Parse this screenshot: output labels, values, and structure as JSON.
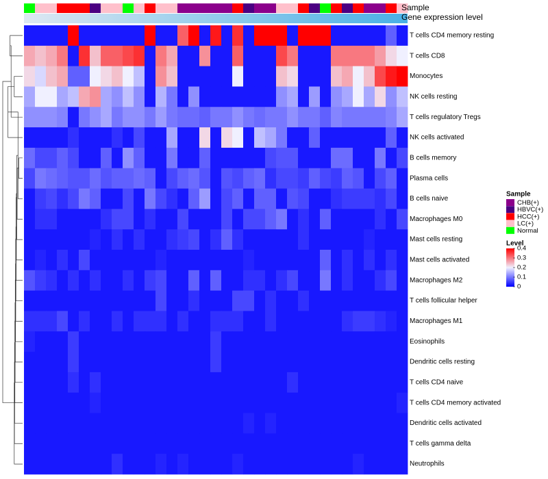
{
  "chart_data": {
    "type": "heatmap",
    "title": "",
    "top_annotation_labels": {
      "sample": "Sample",
      "expression": "Gene expression level"
    },
    "rows": [
      "T cells CD4 memory resting",
      "T cells CD8",
      "Monocytes",
      "NK cells resting",
      "T cells regulatory  Tregs",
      "NK cells activated",
      "B cells memory",
      "Plasma cells",
      "B cells naive",
      "Macrophages M0",
      "Mast cells resting",
      "Mast cells activated",
      "Macrophages M2",
      "T cells follicular helper",
      "Macrophages M1",
      "Eosinophils",
      "Dendritic cells resting",
      "T cells CD4 naive",
      "T cells CD4 memory activated",
      "Dendritic cells activated",
      "T cells gamma delta",
      "Neutrophils"
    ],
    "samples": [
      "Normal",
      "LC(+)",
      "LC(+)",
      "HCC(+)",
      "HCC(+)",
      "HCC(+)",
      "HBVC(+)",
      "LC(+)",
      "LC(+)",
      "Normal",
      "LC(+)",
      "HCC(+)",
      "LC(+)",
      "LC(+)",
      "CHB(+)",
      "CHB(+)",
      "CHB(+)",
      "CHB(+)",
      "CHB(+)",
      "HCC(+)",
      "HBVC(+)",
      "CHB(+)",
      "CHB(+)",
      "LC(+)",
      "LC(+)",
      "HCC(+)",
      "HBVC(+)",
      "Normal",
      "HCC(+)",
      "HBVC(+)",
      "HCC(+)",
      "CHB(+)",
      "CHB(+)",
      "HCC(+)",
      "LC(+)"
    ],
    "expression_gradient": {
      "start": "#dde8f2",
      "end": "#49b0e6"
    },
    "legend": {
      "sample_title": "Sample",
      "sample_categories": [
        {
          "label": "CHB(+)",
          "color": "#8b008b"
        },
        {
          "label": "HBVC(+)",
          "color": "#4b0082"
        },
        {
          "label": "HCC(+)",
          "color": "#ff0000"
        },
        {
          "label": "LC(+)",
          "color": "#ffc0cb"
        },
        {
          "label": "Normal",
          "color": "#00ff00"
        }
      ],
      "level_title": "Level",
      "level_ticks": [
        {
          "value": 0.4,
          "label": "0.4"
        },
        {
          "value": 0.3,
          "label": "0.3"
        },
        {
          "value": 0.2,
          "label": "0.2"
        },
        {
          "value": 0.1,
          "label": "0.1"
        },
        {
          "value": 0,
          "label": "0"
        }
      ],
      "level_range": [
        0,
        0.4
      ]
    },
    "colormap": {
      "stops": [
        {
          "value": 0,
          "color": "#0000ff"
        },
        {
          "value": 0.2,
          "color": "#f0f0ff"
        },
        {
          "value": 0.4,
          "color": "#ff0000"
        }
      ]
    },
    "values": [
      [
        0.02,
        0.02,
        0.02,
        0.02,
        0.4,
        0.02,
        0.02,
        0.02,
        0.02,
        0.02,
        0.02,
        0.4,
        0.02,
        0.02,
        0.32,
        0.4,
        0.02,
        0.38,
        0.02,
        0.36,
        0.02,
        0.4,
        0.4,
        0.4,
        0.02,
        0.4,
        0.4,
        0.4,
        0.02,
        0.02,
        0.02,
        0.02,
        0.02,
        0.08,
        0.02
      ],
      [
        0.26,
        0.24,
        0.26,
        0.3,
        0.02,
        0.36,
        0.24,
        0.32,
        0.32,
        0.34,
        0.36,
        0.02,
        0.3,
        0.26,
        0.02,
        0.02,
        0.28,
        0.02,
        0.02,
        0.32,
        0.02,
        0.02,
        0.02,
        0.34,
        0.3,
        0.02,
        0.02,
        0.02,
        0.3,
        0.3,
        0.3,
        0.3,
        0.27,
        0.22,
        0.2
      ],
      [
        0.22,
        0.18,
        0.24,
        0.26,
        0.08,
        0.08,
        0.2,
        0.22,
        0.24,
        0.2,
        0.16,
        0.02,
        0.28,
        0.24,
        0.02,
        0.02,
        0.02,
        0.02,
        0.02,
        0.2,
        0.02,
        0.02,
        0.02,
        0.24,
        0.22,
        0.02,
        0.02,
        0.02,
        0.24,
        0.26,
        0.2,
        0.24,
        0.34,
        0.38,
        0.4
      ],
      [
        0.14,
        0.2,
        0.2,
        0.14,
        0.16,
        0.26,
        0.28,
        0.14,
        0.12,
        0.16,
        0.12,
        0.02,
        0.15,
        0.1,
        0.02,
        0.12,
        0.02,
        0.02,
        0.02,
        0.02,
        0.02,
        0.02,
        0.02,
        0.12,
        0.14,
        0.02,
        0.13,
        0.02,
        0.12,
        0.14,
        0.2,
        0.14,
        0.22,
        0.12,
        0.16
      ],
      [
        0.12,
        0.12,
        0.12,
        0.11,
        0.02,
        0.1,
        0.12,
        0.14,
        0.1,
        0.12,
        0.12,
        0.1,
        0.13,
        0.1,
        0.09,
        0.09,
        0.08,
        0.1,
        0.1,
        0.12,
        0.1,
        0.09,
        0.1,
        0.1,
        0.12,
        0.1,
        0.1,
        0.08,
        0.11,
        0.1,
        0.1,
        0.1,
        0.1,
        0.11,
        0.14
      ],
      [
        0.02,
        0.02,
        0.02,
        0.02,
        0.04,
        0.02,
        0.02,
        0.02,
        0.04,
        0.02,
        0.06,
        0.02,
        0.02,
        0.14,
        0.02,
        0.02,
        0.22,
        0.02,
        0.22,
        0.2,
        0.02,
        0.16,
        0.14,
        0.1,
        0.02,
        0.02,
        0.08,
        0.02,
        0.02,
        0.02,
        0.02,
        0.02,
        0.02,
        0.08,
        0.02
      ],
      [
        0.09,
        0.06,
        0.06,
        0.08,
        0.06,
        0.02,
        0.02,
        0.08,
        0.02,
        0.12,
        0.08,
        0.02,
        0.02,
        0.1,
        0.02,
        0.02,
        0.08,
        0.02,
        0.02,
        0.02,
        0.02,
        0.02,
        0.06,
        0.07,
        0.07,
        0.02,
        0.02,
        0.02,
        0.09,
        0.09,
        0.02,
        0.02,
        0.1,
        0.02,
        0.06
      ],
      [
        0.06,
        0.1,
        0.09,
        0.08,
        0.07,
        0.07,
        0.09,
        0.07,
        0.08,
        0.08,
        0.09,
        0.08,
        0.02,
        0.06,
        0.08,
        0.09,
        0.07,
        0.02,
        0.07,
        0.06,
        0.08,
        0.09,
        0.04,
        0.06,
        0.06,
        0.05,
        0.08,
        0.06,
        0.05,
        0.08,
        0.07,
        0.02,
        0.06,
        0.08,
        0.02
      ],
      [
        0.02,
        0.05,
        0.06,
        0.04,
        0.06,
        0.1,
        0.08,
        0.02,
        0.02,
        0.06,
        0.02,
        0.1,
        0.06,
        0.04,
        0.02,
        0.08,
        0.13,
        0.02,
        0.06,
        0.08,
        0.02,
        0.08,
        0.08,
        0.02,
        0.07,
        0.06,
        0.02,
        0.02,
        0.04,
        0.05,
        0.05,
        0.05,
        0.04,
        0.06,
        0.02
      ],
      [
        0.02,
        0.04,
        0.04,
        0.02,
        0.02,
        0.02,
        0.02,
        0.04,
        0.06,
        0.06,
        0.02,
        0.04,
        0.02,
        0.02,
        0.06,
        0.02,
        0.02,
        0.02,
        0.06,
        0.02,
        0.06,
        0.06,
        0.08,
        0.1,
        0.02,
        0.04,
        0.02,
        0.08,
        0.02,
        0.02,
        0.02,
        0.02,
        0.04,
        0.02,
        0.06
      ],
      [
        0.02,
        0.02,
        0.02,
        0.02,
        0.02,
        0.02,
        0.03,
        0.02,
        0.04,
        0.02,
        0.04,
        0.02,
        0.02,
        0.04,
        0.05,
        0.06,
        0.02,
        0.04,
        0.08,
        0.04,
        0.02,
        0.02,
        0.02,
        0.02,
        0.02,
        0.04,
        0.02,
        0.02,
        0.02,
        0.02,
        0.02,
        0.03,
        0.02,
        0.02,
        0.02
      ],
      [
        0.02,
        0.03,
        0.02,
        0.04,
        0.02,
        0.06,
        0.02,
        0.02,
        0.02,
        0.02,
        0.02,
        0.02,
        0.03,
        0.02,
        0.02,
        0.02,
        0.02,
        0.02,
        0.02,
        0.02,
        0.03,
        0.02,
        0.02,
        0.02,
        0.02,
        0.02,
        0.02,
        0.08,
        0.02,
        0.04,
        0.02,
        0.04,
        0.02,
        0.04,
        0.02
      ],
      [
        0.07,
        0.05,
        0.04,
        0.02,
        0.04,
        0.02,
        0.04,
        0.02,
        0.02,
        0.04,
        0.02,
        0.05,
        0.06,
        0.02,
        0.02,
        0.08,
        0.02,
        0.08,
        0.02,
        0.02,
        0.04,
        0.04,
        0.02,
        0.04,
        0.06,
        0.02,
        0.02,
        0.1,
        0.02,
        0.04,
        0.02,
        0.02,
        0.04,
        0.06,
        0.02
      ],
      [
        0.02,
        0.02,
        0.02,
        0.02,
        0.02,
        0.02,
        0.02,
        0.02,
        0.02,
        0.02,
        0.02,
        0.02,
        0.06,
        0.02,
        0.02,
        0.04,
        0.02,
        0.02,
        0.02,
        0.06,
        0.06,
        0.02,
        0.04,
        0.02,
        0.02,
        0.04,
        0.02,
        0.02,
        0.02,
        0.02,
        0.02,
        0.02,
        0.02,
        0.02,
        0.02
      ],
      [
        0.04,
        0.04,
        0.04,
        0.06,
        0.02,
        0.04,
        0.02,
        0.02,
        0.04,
        0.02,
        0.04,
        0.04,
        0.04,
        0.02,
        0.04,
        0.02,
        0.02,
        0.04,
        0.04,
        0.04,
        0.02,
        0.02,
        0.04,
        0.02,
        0.02,
        0.02,
        0.02,
        0.02,
        0.02,
        0.04,
        0.05,
        0.05,
        0.04,
        0.03,
        0.02
      ],
      [
        0.03,
        0.02,
        0.02,
        0.02,
        0.05,
        0.02,
        0.02,
        0.02,
        0.02,
        0.02,
        0.02,
        0.02,
        0.02,
        0.02,
        0.02,
        0.02,
        0.02,
        0.05,
        0.02,
        0.02,
        0.02,
        0.02,
        0.02,
        0.02,
        0.02,
        0.02,
        0.02,
        0.02,
        0.02,
        0.02,
        0.02,
        0.02,
        0.02,
        0.02,
        0.02
      ],
      [
        0.02,
        0.02,
        0.02,
        0.02,
        0.05,
        0.02,
        0.02,
        0.02,
        0.02,
        0.02,
        0.02,
        0.02,
        0.02,
        0.02,
        0.02,
        0.02,
        0.02,
        0.05,
        0.02,
        0.02,
        0.02,
        0.02,
        0.02,
        0.02,
        0.02,
        0.02,
        0.02,
        0.02,
        0.02,
        0.02,
        0.02,
        0.02,
        0.02,
        0.02,
        0.02
      ],
      [
        0.02,
        0.02,
        0.02,
        0.02,
        0.04,
        0.02,
        0.04,
        0.02,
        0.02,
        0.02,
        0.02,
        0.02,
        0.02,
        0.02,
        0.02,
        0.02,
        0.02,
        0.02,
        0.02,
        0.02,
        0.02,
        0.02,
        0.02,
        0.02,
        0.04,
        0.02,
        0.02,
        0.02,
        0.02,
        0.02,
        0.02,
        0.02,
        0.02,
        0.02,
        0.02
      ],
      [
        0.02,
        0.02,
        0.02,
        0.02,
        0.02,
        0.02,
        0.03,
        0.02,
        0.02,
        0.02,
        0.02,
        0.02,
        0.02,
        0.02,
        0.02,
        0.02,
        0.02,
        0.02,
        0.02,
        0.02,
        0.02,
        0.02,
        0.02,
        0.02,
        0.02,
        0.02,
        0.02,
        0.02,
        0.02,
        0.02,
        0.02,
        0.02,
        0.02,
        0.02,
        0.03
      ],
      [
        0.02,
        0.02,
        0.02,
        0.02,
        0.02,
        0.02,
        0.02,
        0.02,
        0.02,
        0.02,
        0.02,
        0.02,
        0.02,
        0.02,
        0.02,
        0.02,
        0.02,
        0.02,
        0.02,
        0.02,
        0.03,
        0.02,
        0.03,
        0.02,
        0.02,
        0.02,
        0.02,
        0.02,
        0.02,
        0.02,
        0.02,
        0.02,
        0.02,
        0.02,
        0.02
      ],
      [
        0.02,
        0.02,
        0.02,
        0.02,
        0.02,
        0.02,
        0.02,
        0.02,
        0.02,
        0.02,
        0.02,
        0.02,
        0.02,
        0.02,
        0.02,
        0.02,
        0.02,
        0.02,
        0.02,
        0.02,
        0.02,
        0.02,
        0.02,
        0.02,
        0.02,
        0.02,
        0.02,
        0.02,
        0.02,
        0.02,
        0.02,
        0.02,
        0.02,
        0.02,
        0.02
      ],
      [
        0.02,
        0.02,
        0.02,
        0.02,
        0.02,
        0.02,
        0.02,
        0.02,
        0.04,
        0.02,
        0.02,
        0.02,
        0.03,
        0.02,
        0.03,
        0.02,
        0.02,
        0.02,
        0.02,
        0.03,
        0.02,
        0.02,
        0.02,
        0.02,
        0.02,
        0.02,
        0.02,
        0.02,
        0.02,
        0.02,
        0.03,
        0.02,
        0.02,
        0.02,
        0.02
      ]
    ],
    "dendrogram": {
      "merges": [
        [
          0,
          1
        ],
        [
          2,
          3
        ],
        [
          22,
          4
        ],
        [
          5,
          23
        ],
        [
          6,
          7
        ],
        [
          25,
          8
        ],
        [
          26,
          9
        ],
        [
          27,
          10
        ],
        [
          28,
          11
        ],
        [
          29,
          12
        ],
        [
          30,
          13
        ],
        [
          31,
          14
        ],
        [
          32,
          15
        ],
        [
          33,
          16
        ],
        [
          34,
          17
        ],
        [
          35,
          18
        ],
        [
          36,
          19
        ],
        [
          37,
          20
        ],
        [
          38,
          21
        ],
        [
          24,
          39
        ]
      ],
      "heights": [
        0.6,
        0.4,
        0.55,
        0.7,
        0.18,
        0.22,
        0.26,
        0.28,
        0.3,
        0.31,
        0.32,
        0.33,
        0.34,
        0.35,
        0.36,
        0.37,
        0.38,
        0.39,
        0.4,
        0.95
      ]
    }
  }
}
